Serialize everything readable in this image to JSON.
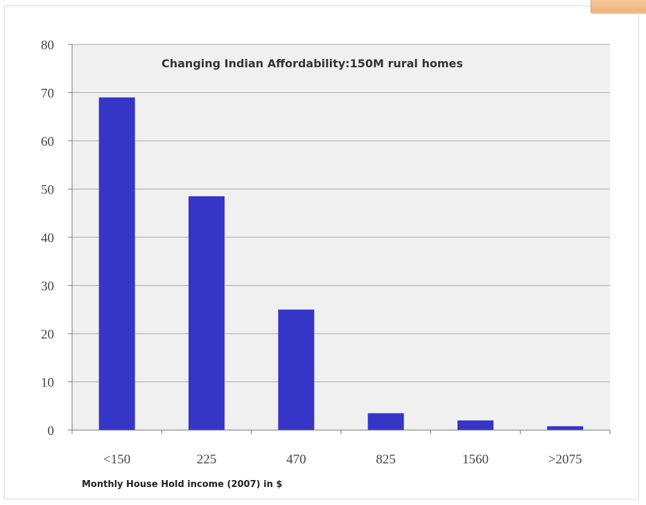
{
  "chart_data": {
    "type": "bar",
    "title": "Changing Indian Affordability:150M rural homes",
    "xlabel": "Monthly House Hold income (2007) in $",
    "ylabel": "",
    "categories": [
      "<150",
      "225",
      "470",
      "825",
      "1560",
      ">2075"
    ],
    "values": [
      69,
      48.5,
      25,
      3.5,
      2,
      0.8
    ],
    "ylim": [
      0,
      80
    ],
    "yticks": [
      0,
      10,
      20,
      30,
      40,
      50,
      60,
      70,
      80
    ],
    "grid": true,
    "legend": "none",
    "colors": {
      "bar": "#3535c8",
      "plot_bg": "#f0f0f0",
      "grid": "#a8a8a8"
    }
  }
}
